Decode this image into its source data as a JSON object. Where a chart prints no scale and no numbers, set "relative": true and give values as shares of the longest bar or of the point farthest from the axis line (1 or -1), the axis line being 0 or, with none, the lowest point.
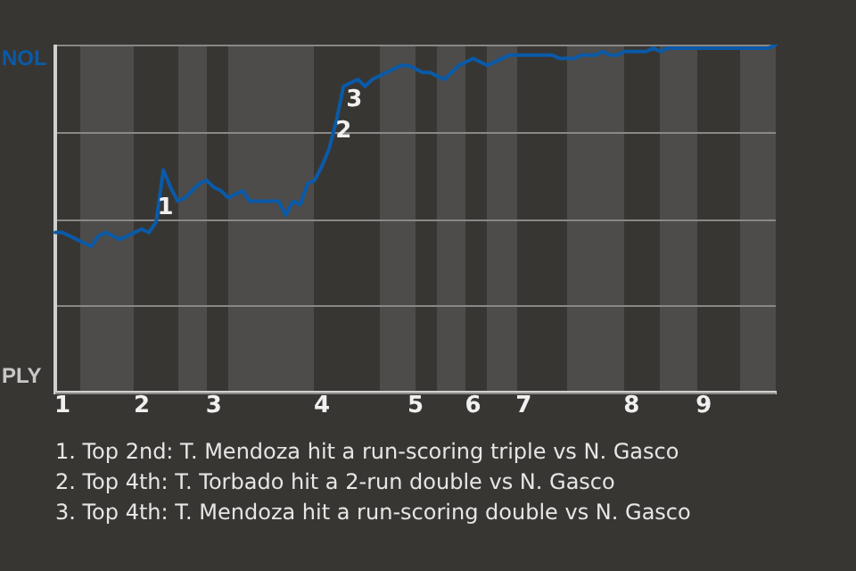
{
  "chart_data": {
    "type": "line",
    "relative": true,
    "grid": "y",
    "legend": false,
    "marker": "none",
    "categories": [
      null,
      "1",
      null,
      null,
      null,
      null,
      null,
      null,
      null,
      null,
      null,
      null,
      "2",
      null,
      null,
      null,
      null,
      null,
      null,
      null,
      null,
      null,
      "3",
      null,
      null,
      null,
      null,
      null,
      null,
      null,
      null,
      null,
      null,
      null,
      null,
      null,
      null,
      "4",
      null,
      null,
      null,
      null,
      null,
      null,
      null,
      null,
      null,
      null,
      null,
      null,
      "5",
      null,
      null,
      null,
      null,
      null,
      null,
      null,
      "6",
      null,
      null,
      null,
      null,
      null,
      null,
      "7",
      null,
      null,
      null,
      null,
      null,
      null,
      null,
      null,
      null,
      null,
      null,
      null,
      null,
      null,
      "8",
      null,
      null,
      null,
      null,
      null,
      null,
      null,
      null,
      null,
      "9",
      null,
      null,
      null,
      null,
      null,
      null,
      null,
      null,
      null,
      null
    ],
    "series": [
      {
        "color": "#0a5aa8",
        "values": [
          0.46,
          0.46,
          0.45,
          0.44,
          0.43,
          0.42,
          0.45,
          0.46,
          0.45,
          0.44,
          0.45,
          0.46,
          0.47,
          0.46,
          0.49,
          0.64,
          0.59,
          0.55,
          0.56,
          0.58,
          0.6,
          0.61,
          0.59,
          0.58,
          0.56,
          0.57,
          0.58,
          0.55,
          0.55,
          0.55,
          0.55,
          0.55,
          0.51,
          0.55,
          0.54,
          0.6,
          0.61,
          0.65,
          0.7,
          0.78,
          0.88,
          0.89,
          0.9,
          0.88,
          0.9,
          0.91,
          0.92,
          0.93,
          0.94,
          0.94,
          0.93,
          0.92,
          0.92,
          0.91,
          0.9,
          0.92,
          0.94,
          0.95,
          0.96,
          0.95,
          0.94,
          0.95,
          0.96,
          0.97,
          0.97,
          0.97,
          0.97,
          0.97,
          0.97,
          0.97,
          0.96,
          0.96,
          0.96,
          0.97,
          0.97,
          0.97,
          0.98,
          0.97,
          0.97,
          0.98,
          0.98,
          0.98,
          0.98,
          0.99,
          0.98,
          0.99,
          0.99,
          0.99,
          0.99,
          0.99,
          0.99,
          0.99,
          0.99,
          0.99,
          0.99,
          0.99,
          0.99,
          0.99,
          0.99,
          0.99,
          1
        ]
      }
    ],
    "annotations": [
      "NOL",
      "PLY",
      "1",
      "2",
      "3",
      "1. Top 2nd: T. Mendoza hit a run-scoring triple vs N. Gasco",
      "2. Top 4th: T. Torbado hit a 2-run double vs N. Gasco",
      "3. Top 4th: T. Mendoza hit a run-scoring double vs N. Gasco"
    ]
  }
}
